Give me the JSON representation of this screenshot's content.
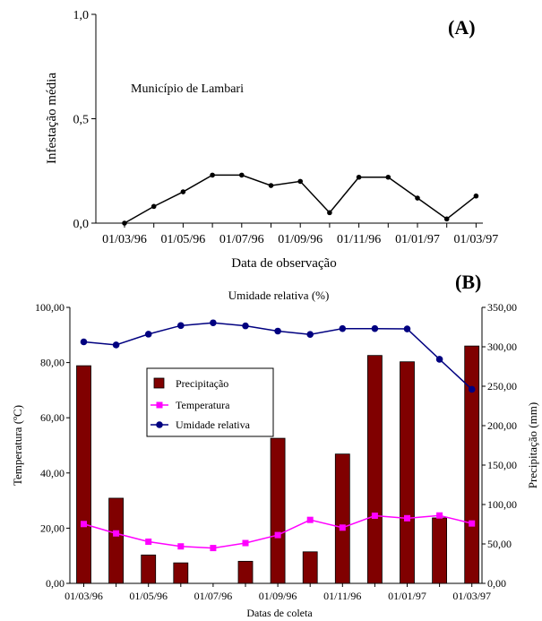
{
  "chart_data": [
    {
      "type": "line",
      "panel_label": "(A)",
      "annotation": "Município de Lambari",
      "xlabel": "Data de observação",
      "ylabel": "Infestação média",
      "ylim": [
        0,
        1.0
      ],
      "y_ticks": [
        "0,0",
        "0,5",
        "1,0"
      ],
      "x_tick_labels": [
        "01/03/96",
        "01/05/96",
        "01/07/96",
        "01/09/96",
        "01/11/96",
        "01/01/97",
        "01/03/97"
      ],
      "series": [
        {
          "x": [
            "01/03/96",
            "01/04/96",
            "01/05/96",
            "01/06/96",
            "01/07/96",
            "01/08/96",
            "01/09/96",
            "01/10/96",
            "01/11/96",
            "01/12/96",
            "01/01/97",
            "01/02/97",
            "01/03/97"
          ],
          "y": [
            0.0,
            0.08,
            0.15,
            0.23,
            0.23,
            0.18,
            0.2,
            0.05,
            0.22,
            0.22,
            0.12,
            0.02,
            0.13
          ]
        }
      ],
      "color": "#000000",
      "grid": false
    },
    {
      "type": "bar+line",
      "panel_label": "(B)",
      "title": "Umidade relativa (%)",
      "xlabel": "Datas de coleta",
      "ylabel_left": "Temperatura (ºC)",
      "ylabel_right": "Precipitação (mm)",
      "ylim_left": [
        0,
        100
      ],
      "ylim_right": [
        0,
        350
      ],
      "y_ticks_left": [
        "0,00",
        "20,00",
        "40,00",
        "60,00",
        "80,00",
        "100,00"
      ],
      "y_ticks_right": [
        "0,00",
        "50,00",
        "100,00",
        "150,00",
        "200,00",
        "250,00",
        "300,00",
        "350,00"
      ],
      "x_tick_labels": [
        "01/03/96",
        "01/05/96",
        "01/07/96",
        "01/09/96",
        "01/11/96",
        "01/01/97",
        "01/03/97"
      ],
      "categories": [
        "01/03/96",
        "01/04/96",
        "01/05/96",
        "01/06/96",
        "01/07/96",
        "01/08/96",
        "01/09/96",
        "01/10/96",
        "01/11/96",
        "01/12/96",
        "01/01/97",
        "01/02/97",
        "01/03/97"
      ],
      "series": [
        {
          "name": "Precipitação",
          "kind": "bar",
          "axis": "right",
          "color": "#800000",
          "values": [
            276,
            108,
            36,
            26,
            0,
            28,
            184,
            40,
            164,
            289,
            281,
            83,
            301
          ]
        },
        {
          "name": "Temperatura",
          "kind": "line",
          "axis": "left",
          "color": "#ff00ff",
          "values": [
            21.5,
            18.1,
            15.1,
            13.4,
            12.8,
            14.6,
            17.5,
            23.0,
            20.2,
            24.5,
            23.6,
            24.6,
            21.7
          ]
        },
        {
          "name": "Umidade relativa",
          "kind": "line",
          "axis": "left",
          "color": "#000080",
          "values": [
            87.5,
            86.4,
            90.3,
            93.4,
            94.4,
            93.3,
            91.4,
            90.2,
            92.3,
            92.3,
            92.2,
            81.2,
            70.3
          ]
        }
      ],
      "legend_position": "upper-left",
      "grid": false
    }
  ]
}
